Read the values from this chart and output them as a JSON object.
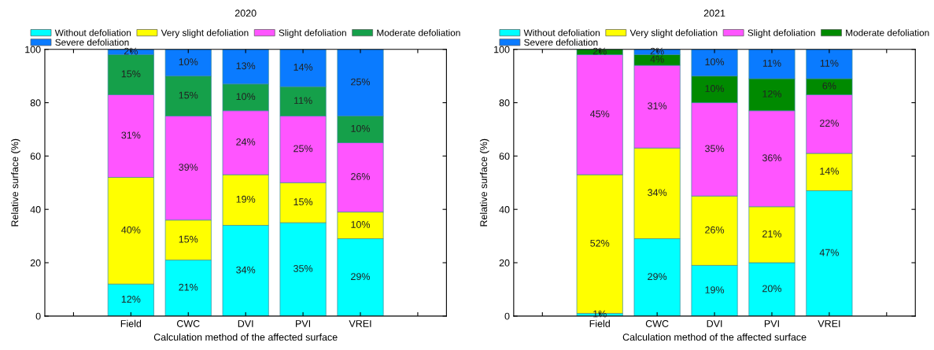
{
  "chart_data": [
    {
      "type": "bar",
      "stacked": true,
      "title": "2020",
      "xlabel": "Calculation method of the affected surface",
      "ylabel": "Relative surface (%)",
      "categories": [
        null,
        "Field",
        "CWC",
        "DVI",
        "PVI",
        "VREI",
        null
      ],
      "ylim": [
        0,
        100
      ],
      "yticks": [
        0,
        20,
        40,
        60,
        80,
        100
      ],
      "legend": "top",
      "grid": false,
      "series": [
        {
          "name": "Without defoliation",
          "color": "#00ffff",
          "values": [
            null,
            12,
            21,
            34,
            35,
            29,
            null
          ],
          "value_labels": [
            null,
            "12%",
            "21%",
            "34%",
            "35%",
            "29%",
            null
          ]
        },
        {
          "name": "Very slight defoliation",
          "color": "#ffff00",
          "values": [
            null,
            40,
            15,
            19,
            15,
            10,
            null
          ],
          "value_labels": [
            null,
            "40%",
            "15%",
            "19%",
            "15%",
            "10%",
            null
          ]
        },
        {
          "name": "Slight defoliation",
          "color": "#ff55ff",
          "values": [
            null,
            31,
            39,
            24,
            25,
            26,
            null
          ],
          "value_labels": [
            null,
            "31%",
            "39%",
            "24%",
            "25%",
            "26%",
            null
          ]
        },
        {
          "name": "Moderate defoliation",
          "color": "#15a04a",
          "values": [
            null,
            15,
            15,
            10,
            11,
            10,
            null
          ],
          "value_labels": [
            null,
            "15%",
            "15%",
            "10%",
            "11%",
            "10%",
            null
          ]
        },
        {
          "name": "Severe defoliation",
          "color": "#0a7bff",
          "values": [
            null,
            2,
            10,
            13,
            14,
            25,
            null
          ],
          "value_labels": [
            null,
            "2%",
            "10%",
            "13%",
            "14%",
            "25%",
            null
          ]
        }
      ]
    },
    {
      "type": "bar",
      "stacked": true,
      "title": "2021",
      "xlabel": "Calculation method of the affected surface",
      "ylabel": "Relative surface (%)",
      "categories": [
        null,
        "Field",
        "CWC",
        "DVI",
        "PVI",
        "VREI",
        null
      ],
      "ylim": [
        0,
        100
      ],
      "yticks": [
        0,
        20,
        40,
        60,
        80,
        100
      ],
      "legend": "top",
      "grid": false,
      "series": [
        {
          "name": "Without defoliation",
          "color": "#00ffff",
          "values": [
            null,
            1,
            29,
            19,
            20,
            47,
            null
          ],
          "value_labels": [
            null,
            "1%",
            "29%",
            "19%",
            "20%",
            "47%",
            null
          ]
        },
        {
          "name": "Very slight defoliation",
          "color": "#ffff00",
          "values": [
            null,
            52,
            34,
            26,
            21,
            14,
            null
          ],
          "value_labels": [
            null,
            "52%",
            "34%",
            "26%",
            "21%",
            "14%",
            null
          ]
        },
        {
          "name": "Slight defoliation",
          "color": "#ff55ff",
          "values": [
            null,
            45,
            31,
            35,
            36,
            22,
            null
          ],
          "value_labels": [
            null,
            "45%",
            "31%",
            "35%",
            "36%",
            "22%",
            null
          ]
        },
        {
          "name": "Moderate defoliation",
          "color": "#008a00",
          "values": [
            null,
            2,
            4,
            10,
            12,
            6,
            null
          ],
          "value_labels": [
            null,
            "2%",
            "4%",
            "10%",
            "12%",
            "6%",
            null
          ]
        },
        {
          "name": "Severe defoliation",
          "color": "#0a7bff",
          "values": [
            null,
            null,
            2,
            10,
            11,
            11,
            null
          ],
          "value_labels": [
            null,
            null,
            "2%",
            "10%",
            "11%",
            "11%",
            null
          ]
        }
      ]
    }
  ]
}
